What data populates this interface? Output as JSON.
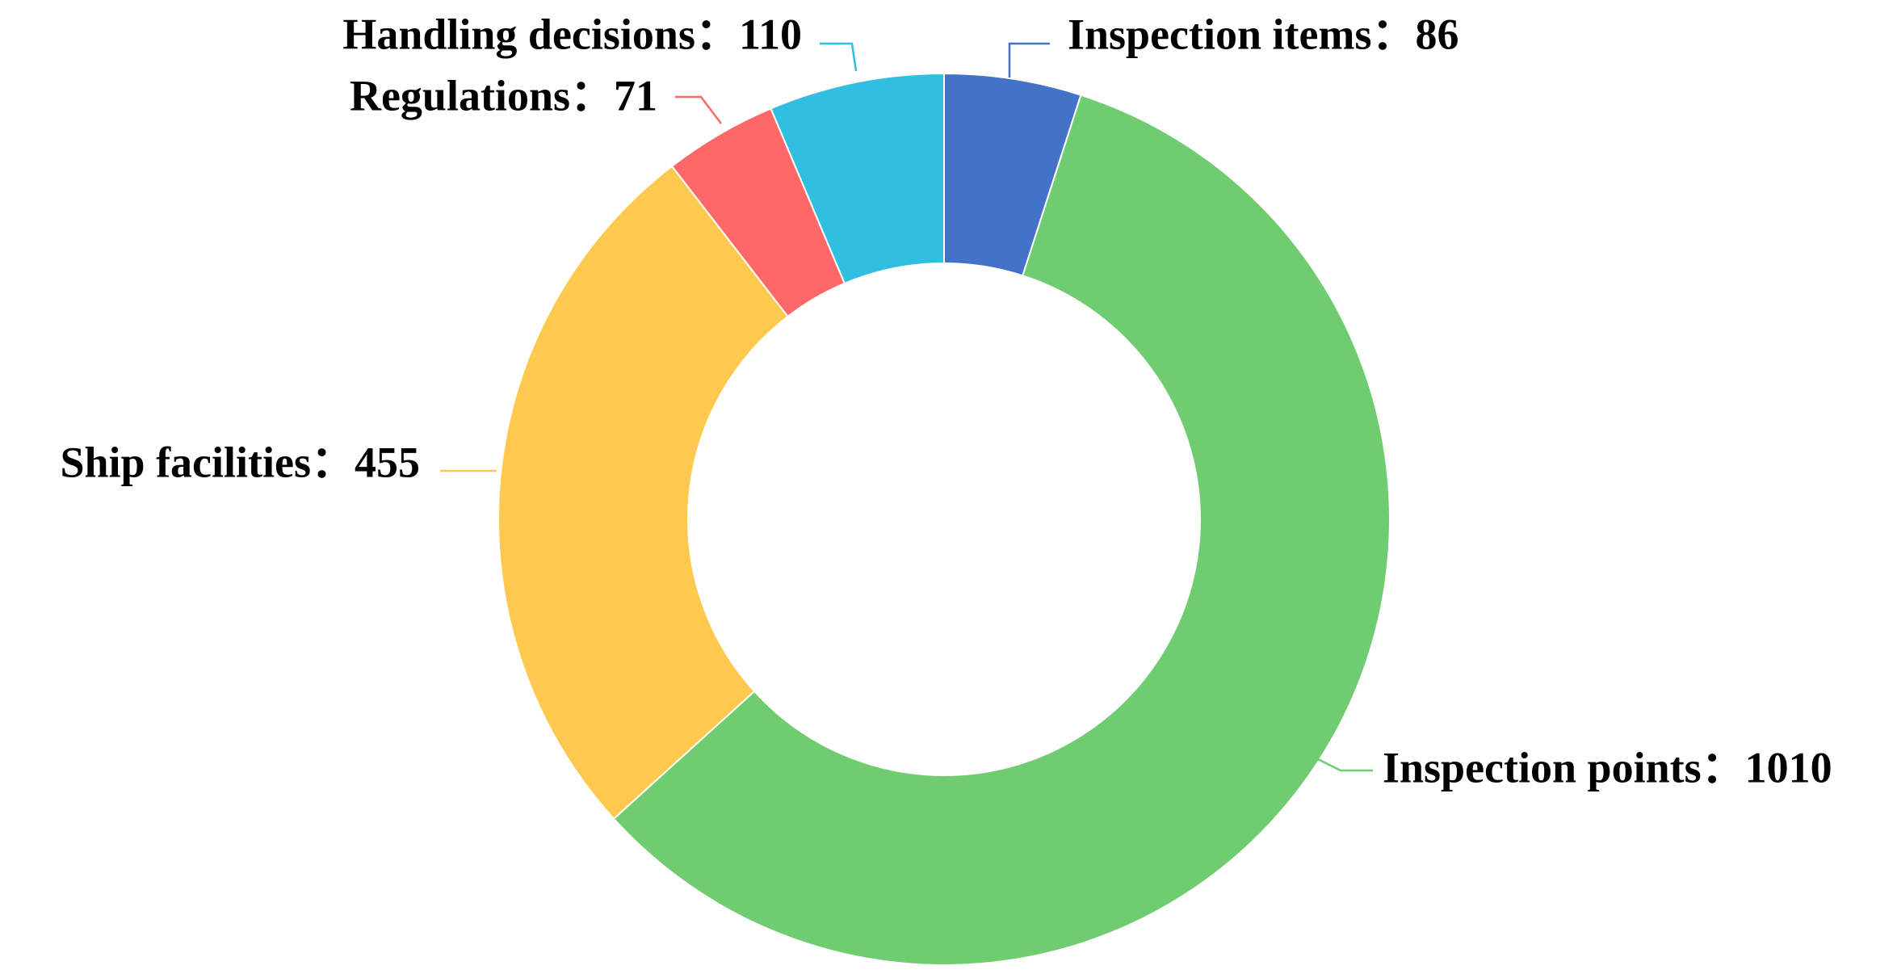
{
  "chart_data": {
    "type": "pie",
    "variant": "donut",
    "legend": "none",
    "slices": [
      {
        "label": "Inspection items",
        "value": 86,
        "color": "#4472C8"
      },
      {
        "label": "Inspection points",
        "value": 1010,
        "color": "#70CC70"
      },
      {
        "label": "Ship facilities",
        "value": 455,
        "color": "#FFC84E"
      },
      {
        "label": "Regulations",
        "value": 71,
        "color": "#FF6868"
      },
      {
        "label": "Handling decisions",
        "value": 110,
        "color": "#30BFE0"
      }
    ],
    "label_separator": "："
  }
}
